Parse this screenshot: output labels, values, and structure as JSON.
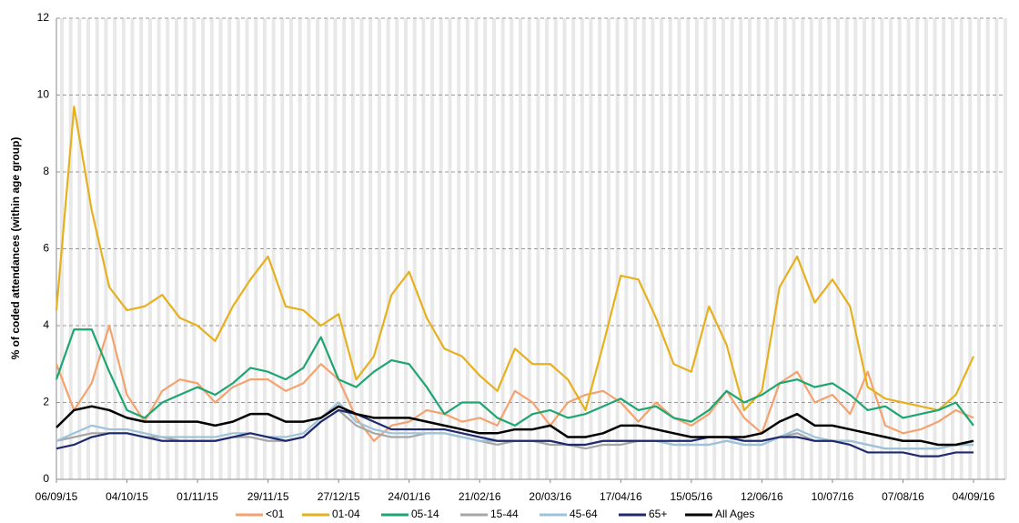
{
  "chart_data": {
    "type": "line",
    "y_axis_label": "% of coded attendances (within age group)",
    "x": [
      "06/09/15",
      "13/09/15",
      "20/09/15",
      "27/09/15",
      "04/10/15",
      "11/10/15",
      "18/10/15",
      "25/10/15",
      "01/11/15",
      "08/11/15",
      "15/11/15",
      "22/11/15",
      "29/11/15",
      "06/12/15",
      "13/12/15",
      "20/12/15",
      "27/12/15",
      "03/01/16",
      "10/01/16",
      "17/01/16",
      "24/01/16",
      "31/01/16",
      "07/02/16",
      "14/02/16",
      "21/02/16",
      "28/02/16",
      "06/03/16",
      "13/03/16",
      "20/03/16",
      "27/03/16",
      "03/04/16",
      "10/04/16",
      "17/04/16",
      "24/04/16",
      "01/05/16",
      "08/05/16",
      "15/05/16",
      "22/05/16",
      "29/05/16",
      "05/06/16",
      "12/06/16",
      "19/06/16",
      "26/06/16",
      "03/07/16",
      "10/07/16",
      "17/07/16",
      "24/07/16",
      "31/07/16",
      "07/08/16",
      "14/08/16",
      "21/08/16",
      "28/08/16",
      "04/09/16"
    ],
    "ylim": [
      0,
      12
    ],
    "yticks": [
      0,
      2,
      4,
      6,
      8,
      10,
      12
    ],
    "grid": true,
    "legend": "bottom",
    "series": [
      {
        "name": "<01",
        "color": "#f4a26e",
        "values": [
          3.0,
          1.8,
          2.5,
          4.0,
          2.2,
          1.5,
          2.3,
          2.6,
          2.5,
          2.0,
          2.4,
          2.6,
          2.6,
          2.3,
          2.5,
          3.0,
          2.6,
          1.6,
          1.0,
          1.4,
          1.5,
          1.8,
          1.7,
          1.5,
          1.6,
          1.4,
          2.3,
          2.0,
          1.4,
          2.0,
          2.2,
          2.3,
          2.0,
          1.5,
          2.0,
          1.6,
          1.4,
          1.7,
          2.3,
          1.6,
          1.2,
          2.5,
          2.8,
          2.0,
          2.2,
          1.7,
          2.8,
          1.4,
          1.2,
          1.3,
          1.5,
          1.8,
          1.6
        ]
      },
      {
        "name": "01-04",
        "color": "#e6b01e",
        "values": [
          4.4,
          9.7,
          7.0,
          5.0,
          4.4,
          4.5,
          4.8,
          4.2,
          4.0,
          3.6,
          4.5,
          5.2,
          5.8,
          4.5,
          4.4,
          4.0,
          4.3,
          2.6,
          3.2,
          4.8,
          5.4,
          4.2,
          3.4,
          3.2,
          2.7,
          2.3,
          3.4,
          3.0,
          3.0,
          2.6,
          1.8,
          3.5,
          5.3,
          5.2,
          4.2,
          3.0,
          2.8,
          4.5,
          3.5,
          1.8,
          2.3,
          5.0,
          5.8,
          4.6,
          5.2,
          4.5,
          2.4,
          2.1,
          2.0,
          1.9,
          1.8,
          2.2,
          3.2
        ]
      },
      {
        "name": "05-14",
        "color": "#1ea672",
        "values": [
          2.6,
          3.9,
          3.9,
          2.8,
          1.8,
          1.6,
          2.0,
          2.2,
          2.4,
          2.2,
          2.5,
          2.9,
          2.8,
          2.6,
          2.9,
          3.7,
          2.6,
          2.4,
          2.8,
          3.1,
          3.0,
          2.4,
          1.7,
          2.0,
          2.0,
          1.6,
          1.4,
          1.7,
          1.8,
          1.6,
          1.7,
          1.9,
          2.1,
          1.8,
          1.9,
          1.6,
          1.5,
          1.8,
          2.3,
          2.0,
          2.2,
          2.5,
          2.6,
          2.4,
          2.5,
          2.2,
          1.8,
          1.9,
          1.6,
          1.7,
          1.8,
          2.0,
          1.4
        ]
      },
      {
        "name": "15-44",
        "color": "#a6a6a6",
        "values": [
          1.0,
          1.1,
          1.2,
          1.2,
          1.2,
          1.1,
          1.1,
          1.0,
          1.0,
          1.0,
          1.1,
          1.1,
          1.0,
          1.0,
          1.1,
          1.5,
          1.8,
          1.4,
          1.2,
          1.1,
          1.1,
          1.2,
          1.2,
          1.1,
          1.0,
          0.9,
          1.0,
          1.0,
          0.9,
          0.9,
          0.8,
          0.9,
          0.9,
          1.0,
          1.0,
          0.9,
          0.9,
          0.9,
          1.0,
          0.9,
          0.9,
          1.1,
          1.2,
          1.0,
          1.0,
          1.0,
          0.9,
          0.8,
          0.8,
          0.8,
          0.8,
          0.9,
          0.9
        ]
      },
      {
        "name": "45-64",
        "color": "#9cc3da",
        "values": [
          1.0,
          1.2,
          1.4,
          1.3,
          1.3,
          1.2,
          1.1,
          1.1,
          1.1,
          1.1,
          1.2,
          1.2,
          1.1,
          1.1,
          1.2,
          1.6,
          2.0,
          1.5,
          1.3,
          1.2,
          1.2,
          1.2,
          1.2,
          1.1,
          1.0,
          1.0,
          1.0,
          1.0,
          1.0,
          0.9,
          0.9,
          1.0,
          1.0,
          1.0,
          1.0,
          0.9,
          0.9,
          0.9,
          1.0,
          0.9,
          0.9,
          1.1,
          1.3,
          1.1,
          1.0,
          1.0,
          0.9,
          0.8,
          0.8,
          0.8,
          0.8,
          0.9,
          0.9
        ]
      },
      {
        "name": "65+",
        "color": "#1f2a6e",
        "values": [
          0.8,
          0.9,
          1.1,
          1.2,
          1.2,
          1.1,
          1.0,
          1.0,
          1.0,
          1.0,
          1.1,
          1.2,
          1.1,
          1.0,
          1.1,
          1.5,
          1.8,
          1.7,
          1.5,
          1.3,
          1.3,
          1.3,
          1.3,
          1.2,
          1.1,
          1.0,
          1.0,
          1.0,
          1.0,
          0.9,
          0.9,
          1.0,
          1.0,
          1.0,
          1.0,
          1.0,
          1.0,
          1.1,
          1.1,
          1.0,
          1.0,
          1.1,
          1.1,
          1.0,
          1.0,
          0.9,
          0.7,
          0.7,
          0.7,
          0.6,
          0.6,
          0.7,
          0.7
        ]
      },
      {
        "name": "All Ages",
        "color": "#000000",
        "values": [
          1.35,
          1.8,
          1.9,
          1.8,
          1.6,
          1.5,
          1.5,
          1.5,
          1.5,
          1.4,
          1.5,
          1.7,
          1.7,
          1.5,
          1.5,
          1.6,
          1.9,
          1.7,
          1.6,
          1.6,
          1.6,
          1.5,
          1.4,
          1.3,
          1.2,
          1.2,
          1.3,
          1.3,
          1.4,
          1.1,
          1.1,
          1.2,
          1.4,
          1.4,
          1.3,
          1.2,
          1.1,
          1.1,
          1.1,
          1.1,
          1.2,
          1.5,
          1.7,
          1.4,
          1.4,
          1.3,
          1.2,
          1.1,
          1.0,
          1.0,
          0.9,
          0.9,
          1.0
        ]
      }
    ]
  }
}
